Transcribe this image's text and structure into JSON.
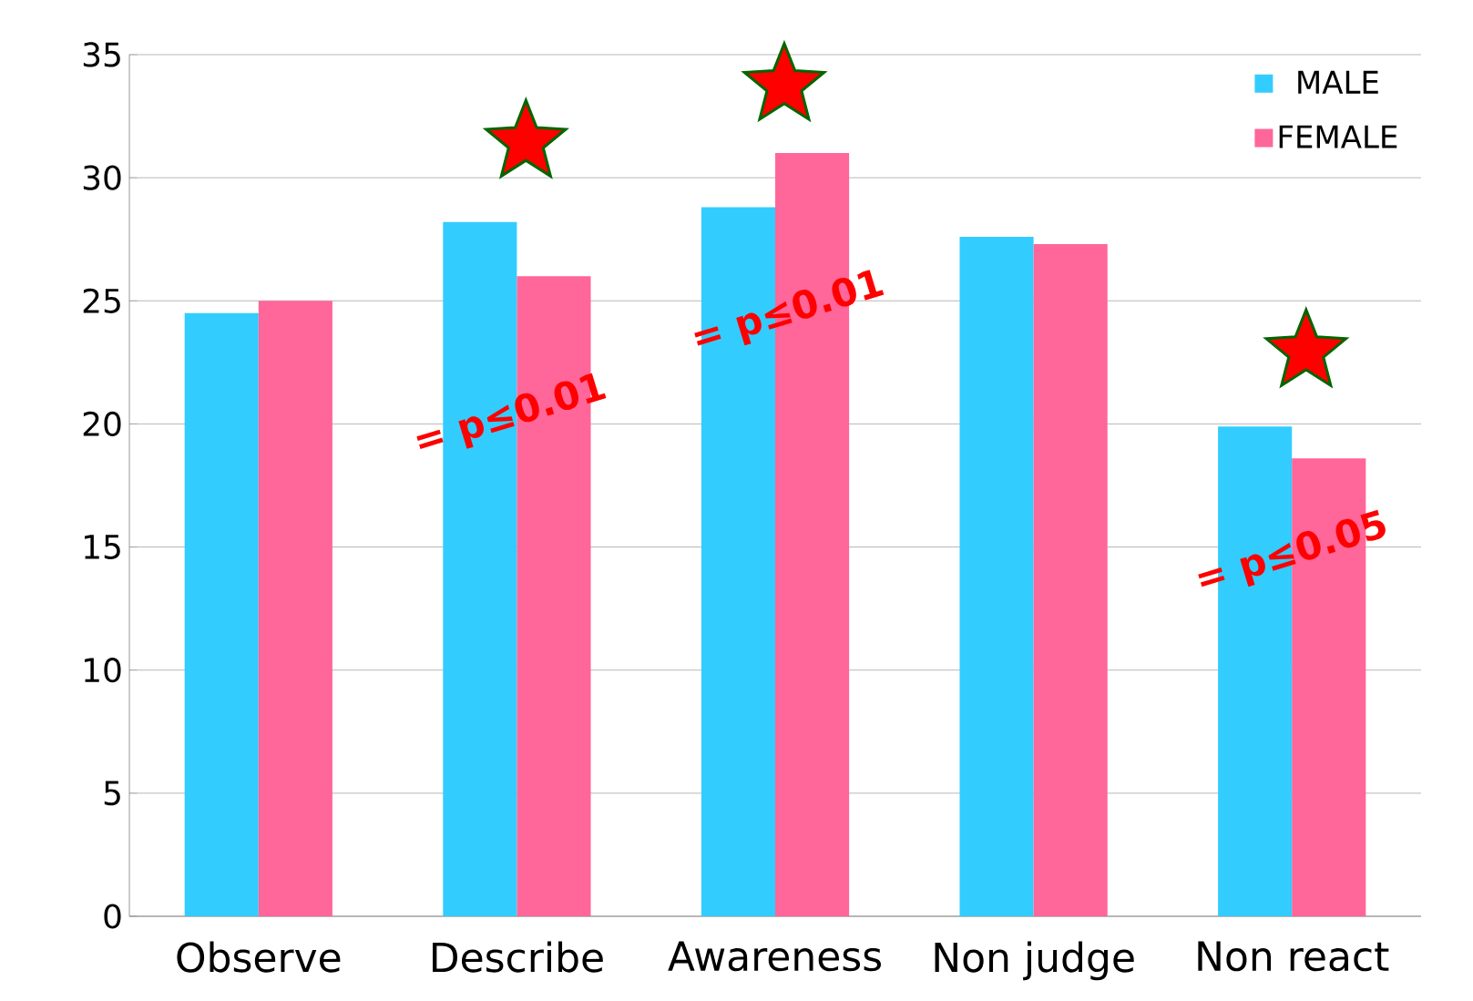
{
  "chart_data": {
    "type": "bar",
    "categories": [
      "Observe",
      "Describe",
      "Awareness",
      "Non judge",
      "Non react"
    ],
    "series": [
      {
        "name": "MALE",
        "color": "#33ccff",
        "values": [
          24.5,
          28.2,
          28.8,
          27.6,
          19.9
        ]
      },
      {
        "name": "FEMALE",
        "color": "#ff6699",
        "values": [
          25.0,
          26.0,
          31.0,
          27.3,
          18.6
        ]
      }
    ],
    "ylim": [
      0,
      35
    ],
    "yticks": [
      0,
      5,
      10,
      15,
      20,
      25,
      30,
      35
    ],
    "grid": "y",
    "legend": "top right",
    "annotations": [
      "= p≤0.01",
      "= p≤0.01",
      "= p≤0.05"
    ]
  }
}
